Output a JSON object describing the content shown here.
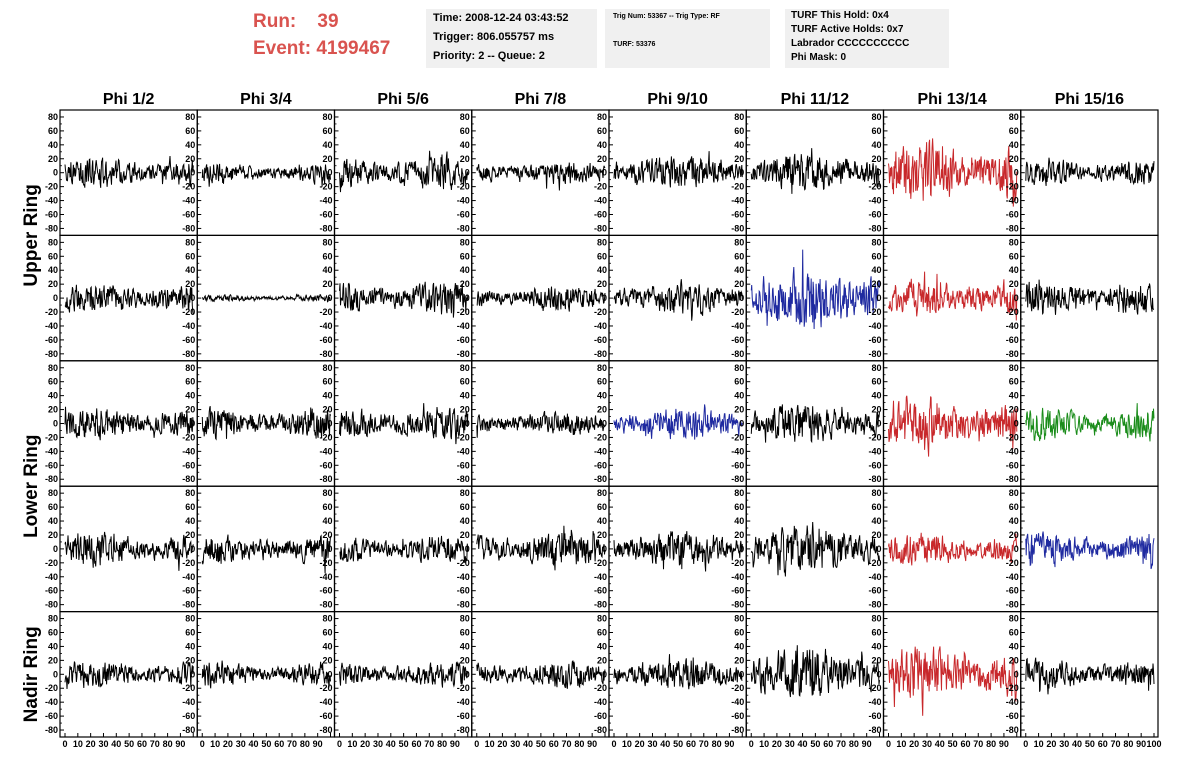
{
  "header": {
    "run_label": "Run:",
    "run_value": "39",
    "event_label": "Event:",
    "event_value": "4199467",
    "time": "Time: 2008-12-24 03:43:52",
    "trigger": "Trigger: 806.055757 ms",
    "priority": "Priority: 2 -- Queue: 2",
    "trig_num": "Trig Num: 53367 -- Trig Type: RF",
    "turf": "TURF: 53376",
    "turf_this_hold": "TURF This Hold: 0x4",
    "turf_active_holds": "TURF Active Holds: 0x7",
    "labrador": "Labrador CCCCCCCCCC",
    "phi_mask": "Phi Mask: 0"
  },
  "colors": {
    "black": "#000000",
    "red": "#c8282b",
    "blue": "#1f2aa0",
    "green": "#1a8c1a",
    "run_text": "#d9534f"
  },
  "chart_data": {
    "type": "line",
    "columns": [
      "Phi 1/2",
      "Phi 3/4",
      "Phi 5/6",
      "Phi 7/8",
      "Phi 9/10",
      "Phi 11/12",
      "Phi 13/14",
      "Phi 15/16"
    ],
    "ring_labels": [
      {
        "text": "Upper Ring",
        "rows": [
          0,
          1
        ]
      },
      {
        "text": "Lower Ring",
        "rows": [
          2,
          3
        ]
      },
      {
        "text": "Nadir Ring",
        "rows": [
          4,
          4
        ]
      }
    ],
    "ylim": [
      -90,
      90
    ],
    "yticks": [
      "80",
      "60",
      "40",
      "20",
      "0",
      "-20",
      "-40",
      "-60",
      "-80"
    ],
    "xlim": [
      0,
      100
    ],
    "xticks": [
      "0",
      "10",
      "20",
      "30",
      "40",
      "50",
      "60",
      "70",
      "80",
      "90",
      "100"
    ],
    "x_last_tick": "100",
    "grid": false,
    "panels": [
      [
        {
          "color": "black",
          "amp": 13
        },
        {
          "color": "black",
          "amp": 9
        },
        {
          "color": "black",
          "amp": 15
        },
        {
          "color": "black",
          "amp": 10
        },
        {
          "color": "black",
          "amp": 15
        },
        {
          "color": "black",
          "amp": 17
        },
        {
          "color": "red",
          "amp": 26
        },
        {
          "color": "black",
          "amp": 12
        }
      ],
      [
        {
          "color": "black",
          "amp": 13
        },
        {
          "color": "black",
          "amp": 3
        },
        {
          "color": "black",
          "amp": 14
        },
        {
          "color": "black",
          "amp": 11
        },
        {
          "color": "black",
          "amp": 14
        },
        {
          "color": "blue",
          "amp": 27
        },
        {
          "color": "red",
          "amp": 16
        },
        {
          "color": "black",
          "amp": 15
        }
      ],
      [
        {
          "color": "black",
          "amp": 14
        },
        {
          "color": "black",
          "amp": 13
        },
        {
          "color": "black",
          "amp": 14
        },
        {
          "color": "black",
          "amp": 10
        },
        {
          "color": "blue",
          "amp": 14
        },
        {
          "color": "black",
          "amp": 17
        },
        {
          "color": "red",
          "amp": 23
        },
        {
          "color": "green",
          "amp": 14
        }
      ],
      [
        {
          "color": "black",
          "amp": 15
        },
        {
          "color": "black",
          "amp": 13
        },
        {
          "color": "black",
          "amp": 12
        },
        {
          "color": "black",
          "amp": 16
        },
        {
          "color": "black",
          "amp": 16
        },
        {
          "color": "black",
          "amp": 22
        },
        {
          "color": "red",
          "amp": 14
        },
        {
          "color": "blue",
          "amp": 14
        }
      ],
      [
        {
          "color": "black",
          "amp": 12
        },
        {
          "color": "black",
          "amp": 11
        },
        {
          "color": "black",
          "amp": 11
        },
        {
          "color": "black",
          "amp": 12
        },
        {
          "color": "black",
          "amp": 14
        },
        {
          "color": "black",
          "amp": 24
        },
        {
          "color": "red",
          "amp": 23
        },
        {
          "color": "black",
          "amp": 13
        }
      ]
    ]
  }
}
